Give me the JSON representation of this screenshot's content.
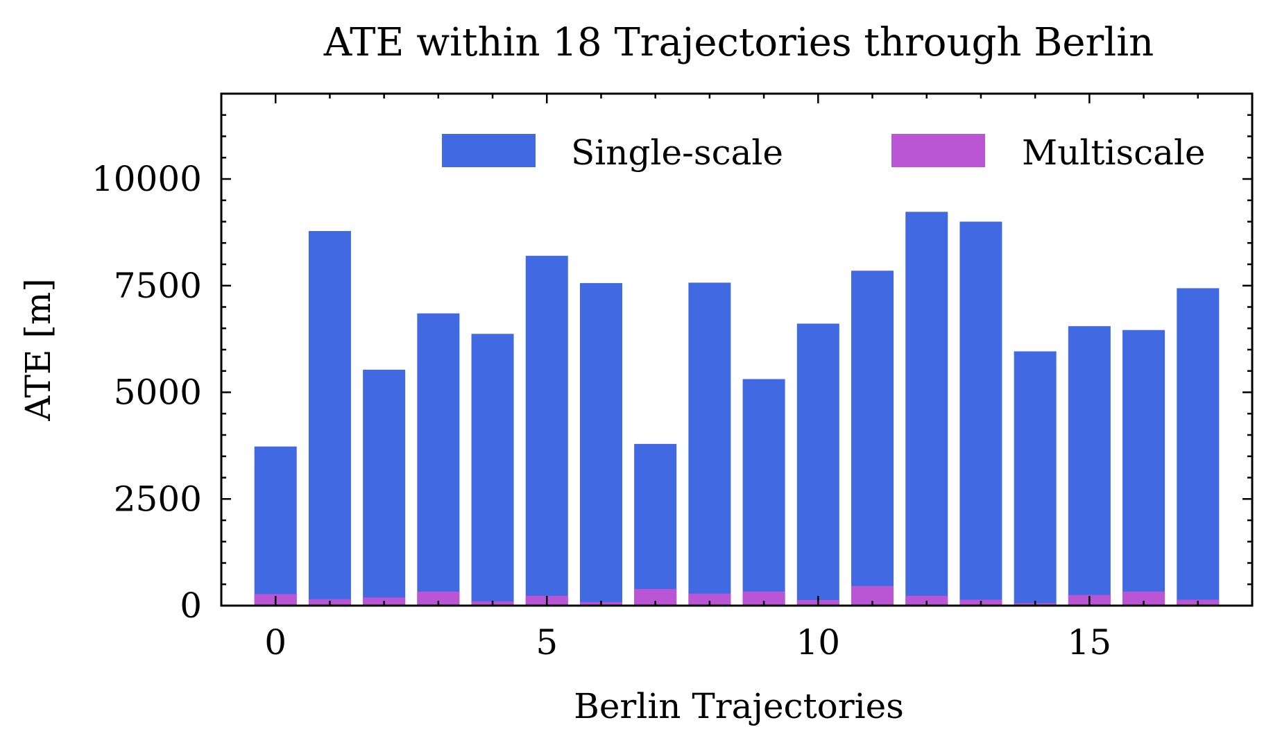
{
  "chart_data": {
    "type": "bar",
    "title": "ATE within 18 Trajectories through Berlin",
    "xlabel": "Berlin Trajectories",
    "ylabel": "ATE [m]",
    "x": [
      0,
      1,
      2,
      3,
      4,
      5,
      6,
      7,
      8,
      9,
      10,
      11,
      12,
      13,
      14,
      15,
      16,
      17
    ],
    "xticks": [
      0,
      5,
      10,
      15
    ],
    "xlim": [
      -1.0,
      18.0
    ],
    "yticks": [
      0,
      2500,
      5000,
      7500,
      10000
    ],
    "ylim": [
      0,
      12000
    ],
    "grid": false,
    "legend_position": "top-right",
    "series": [
      {
        "name": "Single-scale",
        "color": "#4169e1",
        "values": [
          3730,
          8780,
          5530,
          6850,
          6370,
          8200,
          7560,
          3790,
          7570,
          5310,
          6610,
          7850,
          9230,
          9000,
          5960,
          6550,
          6460,
          7440
        ]
      },
      {
        "name": "Multiscale",
        "color": "#ba55d3",
        "values": [
          270,
          150,
          190,
          330,
          100,
          230,
          80,
          390,
          280,
          330,
          130,
          460,
          230,
          140,
          60,
          250,
          330,
          140
        ]
      }
    ]
  }
}
